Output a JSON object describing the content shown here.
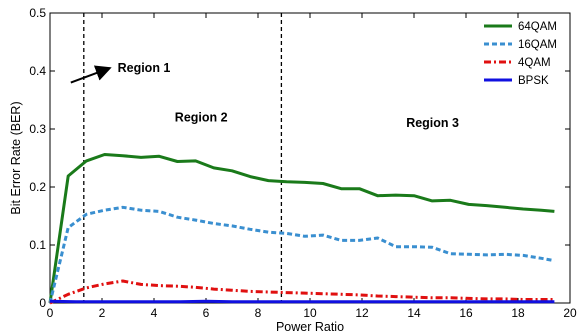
{
  "chart_data": {
    "type": "line",
    "title": "",
    "xlabel": "Power Ratio",
    "ylabel": "Bit Error Rate (BER)",
    "xlim": [
      0,
      20
    ],
    "ylim": [
      0,
      0.5
    ],
    "xticks": [
      0,
      2,
      4,
      6,
      8,
      10,
      12,
      14,
      16,
      18,
      20
    ],
    "yticks": [
      0,
      0.1,
      0.2,
      0.3,
      0.4,
      0.5
    ],
    "xtick_labels": [
      "0",
      "2",
      "4",
      "6",
      "8",
      "10",
      "12",
      "14",
      "16",
      "18",
      "20"
    ],
    "ytick_labels": [
      "0",
      "0.1",
      "0.2",
      "0.3",
      "0.4",
      "0.5"
    ],
    "grid": false,
    "legend_position": "top-right",
    "vlines": [
      1.3,
      8.9
    ],
    "annotations": [
      {
        "text": "Region 1",
        "x": 2.6,
        "y": 0.405,
        "arrow_from": [
          0.8,
          0.38
        ],
        "arrow_to": [
          2.3,
          0.405
        ]
      },
      {
        "text": "Region 2",
        "x": 4.8,
        "y": 0.32
      },
      {
        "text": "Region 3",
        "x": 13.7,
        "y": 0.31
      }
    ],
    "series": [
      {
        "name": "64QAM",
        "color": "#1a7a1a",
        "style": "solid",
        "x": [
          0,
          0.7,
          1.4,
          2.1,
          2.8,
          3.5,
          4.2,
          4.9,
          5.6,
          6.3,
          7.0,
          7.7,
          8.4,
          9.1,
          9.8,
          10.5,
          11.2,
          11.9,
          12.6,
          13.3,
          14.0,
          14.7,
          15.4,
          16.1,
          16.8,
          17.5,
          18.2,
          18.9,
          19.4
        ],
        "y": [
          0.0,
          0.219,
          0.245,
          0.256,
          0.254,
          0.251,
          0.253,
          0.244,
          0.245,
          0.233,
          0.228,
          0.218,
          0.211,
          0.209,
          0.208,
          0.206,
          0.197,
          0.197,
          0.185,
          0.186,
          0.185,
          0.176,
          0.177,
          0.17,
          0.168,
          0.165,
          0.162,
          0.16,
          0.158
        ]
      },
      {
        "name": "16QAM",
        "color": "#3a8fd0",
        "style": "dashed",
        "x": [
          0,
          0.7,
          1.4,
          2.1,
          2.8,
          3.5,
          4.2,
          4.9,
          5.6,
          6.3,
          7.0,
          7.7,
          8.4,
          9.1,
          9.8,
          10.5,
          11.2,
          11.9,
          12.6,
          13.3,
          14.0,
          14.7,
          15.4,
          16.1,
          16.8,
          17.5,
          18.2,
          18.9,
          19.4
        ],
        "y": [
          0.0,
          0.13,
          0.153,
          0.16,
          0.165,
          0.16,
          0.158,
          0.148,
          0.143,
          0.137,
          0.133,
          0.127,
          0.122,
          0.12,
          0.115,
          0.117,
          0.108,
          0.108,
          0.112,
          0.097,
          0.097,
          0.096,
          0.085,
          0.084,
          0.083,
          0.084,
          0.082,
          0.077,
          0.073
        ]
      },
      {
        "name": "4QAM",
        "color": "#e01010",
        "style": "dashdot",
        "x": [
          0,
          0.7,
          1.4,
          2.1,
          2.8,
          3.5,
          4.2,
          4.9,
          5.6,
          6.3,
          7.0,
          7.7,
          8.4,
          9.1,
          9.8,
          10.5,
          11.2,
          11.9,
          12.6,
          13.3,
          14.0,
          14.7,
          15.4,
          16.1,
          16.8,
          17.5,
          18.2,
          18.9,
          19.4
        ],
        "y": [
          0.0,
          0.015,
          0.026,
          0.033,
          0.038,
          0.032,
          0.03,
          0.029,
          0.027,
          0.024,
          0.022,
          0.02,
          0.019,
          0.018,
          0.017,
          0.016,
          0.015,
          0.014,
          0.012,
          0.011,
          0.01,
          0.009,
          0.009,
          0.008,
          0.007,
          0.007,
          0.006,
          0.006,
          0.006
        ]
      },
      {
        "name": "BPSK",
        "color": "#1010e0",
        "style": "solid",
        "x": [
          0,
          1.0,
          2.0,
          3.0,
          4.0,
          5.0,
          6.0,
          7.0,
          8.0,
          9.0,
          10.0,
          11.0,
          12.0,
          13.0,
          14.0,
          15.0,
          16.0,
          17.0,
          18.0,
          19.4
        ],
        "y": [
          0.003,
          0.002,
          0.002,
          0.002,
          0.002,
          0.002,
          0.003,
          0.002,
          0.002,
          0.002,
          0.002,
          0.002,
          0.002,
          0.002,
          0.002,
          0.002,
          0.002,
          0.002,
          0.002,
          0.002
        ]
      }
    ]
  }
}
